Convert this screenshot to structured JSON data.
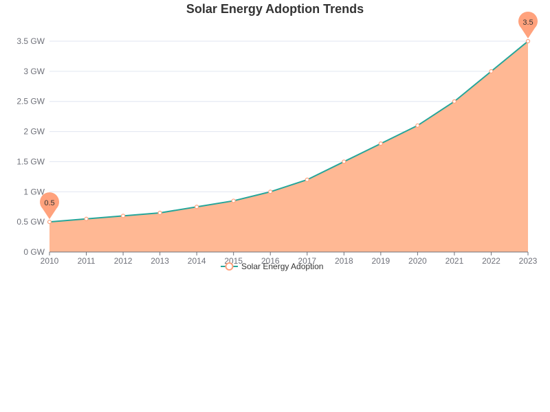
{
  "chart_data": {
    "type": "area",
    "title": "Solar Energy Adoption Trends",
    "categories": [
      "2010",
      "2011",
      "2012",
      "2013",
      "2014",
      "2015",
      "2016",
      "2017",
      "2018",
      "2019",
      "2020",
      "2021",
      "2022",
      "2023"
    ],
    "series": [
      {
        "name": "Solar Energy Adoption",
        "values": [
          0.5,
          0.55,
          0.6,
          0.65,
          0.75,
          0.85,
          1.0,
          1.2,
          1.5,
          1.8,
          2.1,
          2.5,
          3.0,
          3.5
        ],
        "line_color": "#26a69a",
        "area_color": "#ffb894",
        "marker_color": "#ffa27d"
      }
    ],
    "y_axis": {
      "min": 0,
      "max": 3.5,
      "tick_values": [
        0,
        0.5,
        1,
        1.5,
        2,
        2.5,
        3,
        3.5
      ],
      "tick_labels": [
        "0 GW",
        "0.5 GW",
        "1 GW",
        "1.5 GW",
        "2 GW",
        "2.5 GW",
        "3 GW",
        "3.5 GW"
      ]
    },
    "grid": true,
    "legend_position": "bottom-center",
    "annotations": [
      {
        "category": "2010",
        "label": "0.5",
        "kind": "min-pin"
      },
      {
        "category": "2023",
        "label": "3.5",
        "kind": "max-pin"
      }
    ]
  }
}
